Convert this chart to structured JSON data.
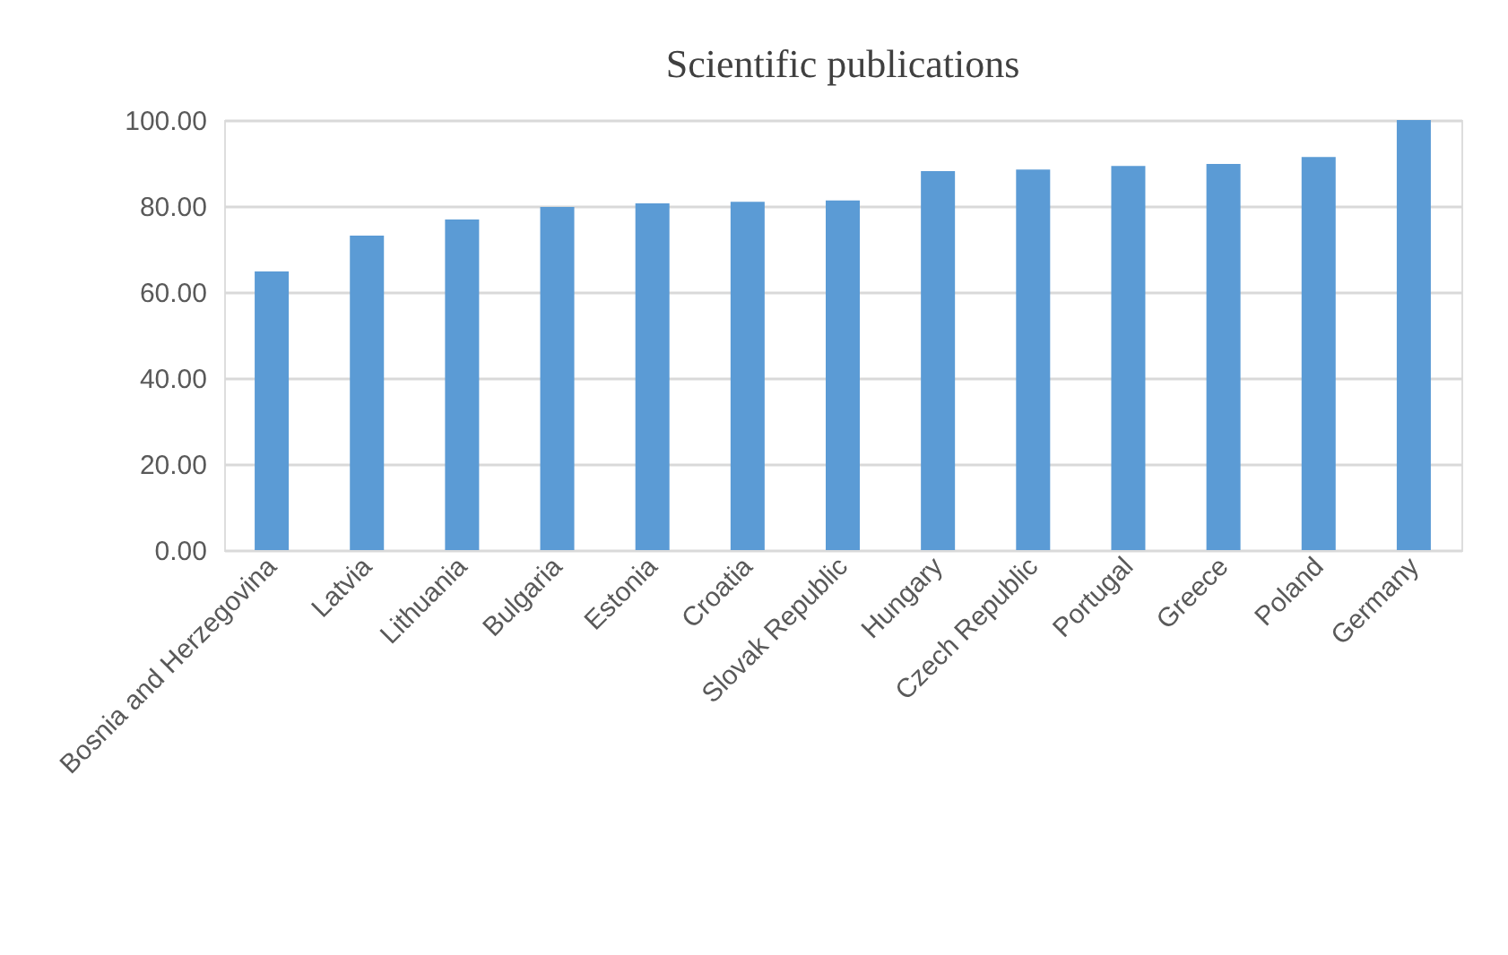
{
  "chart_data": {
    "type": "bar",
    "title": "Scientific publications",
    "categories": [
      "Bosnia and Herzegovina",
      "Latvia",
      "Lithuania",
      "Bulgaria",
      "Estonia",
      "Croatia",
      "Slovak Republic",
      "Hungary",
      "Czech Republic",
      "Portugal",
      "Greece",
      "Poland",
      "Germany"
    ],
    "values": [
      64.8,
      73.1,
      76.9,
      79.8,
      80.6,
      81.0,
      81.3,
      88.1,
      88.5,
      89.3,
      89.8,
      91.4,
      100.0
    ],
    "color": "#5b9bd5",
    "ylim": [
      0,
      100
    ],
    "yticks": [
      {
        "value": 0,
        "label": "0.00"
      },
      {
        "value": 20,
        "label": "20.00"
      },
      {
        "value": 40,
        "label": "40.00"
      },
      {
        "value": 60,
        "label": "60.00"
      },
      {
        "value": 80,
        "label": "80.00"
      },
      {
        "value": 100,
        "label": "100.00"
      }
    ],
    "grid": "y"
  }
}
